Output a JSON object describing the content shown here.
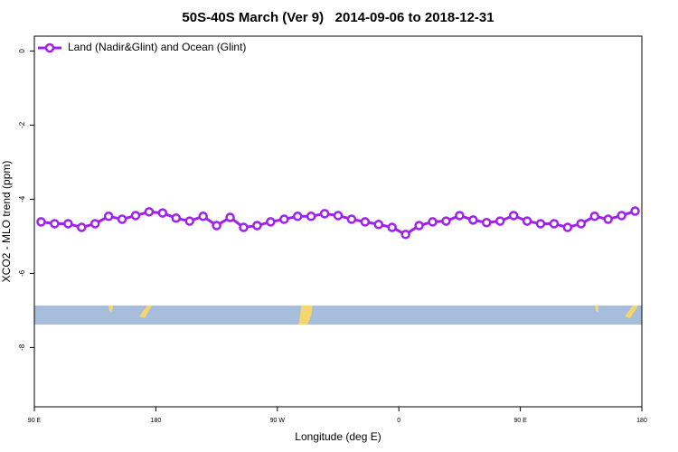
{
  "chart_data": {
    "type": "line",
    "title": "50S-40S March (Ver 9)   2014-09-06 to 2018-12-31",
    "x_label": "Longitude (deg E)",
    "y_label": "XCO2 - MLO trend (ppm)",
    "x": [
      95,
      105,
      115,
      125,
      135,
      145,
      155,
      165,
      175,
      185,
      195,
      205,
      215,
      225,
      235,
      245,
      255,
      265,
      275,
      285,
      295,
      305,
      315,
      325,
      335,
      345,
      355,
      365,
      375,
      385,
      395,
      405,
      415,
      425,
      435,
      445,
      455,
      465,
      475,
      485,
      495,
      505,
      515,
      525,
      535
    ],
    "series": [
      {
        "name": "Land (Nadir&Glint) and Ocean (Glint)",
        "color": "#a020f0",
        "values": [
          -4.61,
          -4.66,
          -4.66,
          -4.76,
          -4.66,
          -4.46,
          -4.54,
          -4.44,
          -4.34,
          -4.37,
          -4.51,
          -4.59,
          -4.46,
          -4.71,
          -4.49,
          -4.76,
          -4.71,
          -4.61,
          -4.54,
          -4.46,
          -4.46,
          -4.39,
          -4.44,
          -4.54,
          -4.61,
          -4.68,
          -4.76,
          -4.95,
          -4.71,
          -4.61,
          -4.59,
          -4.44,
          -4.56,
          -4.63,
          -4.59,
          -4.44,
          -4.59,
          -4.66,
          -4.66,
          -4.76,
          -4.66,
          -4.46,
          -4.54,
          -4.44,
          -4.32
        ]
      }
    ],
    "xlim": [
      90,
      540
    ],
    "xticks": [
      {
        "value": 90,
        "label": "90 E"
      },
      180,
      {
        "value": 270,
        "label": "90 W"
      },
      {
        "value": 360,
        "label": "0"
      },
      {
        "value": 450,
        "label": "90 E"
      },
      {
        "value": 540,
        "label": "180"
      }
    ],
    "ylim": [
      -9.6,
      0.4
    ],
    "yticks": [
      0,
      -2,
      -4,
      -6,
      -8
    ],
    "legend": "top-left",
    "grid": false
  }
}
